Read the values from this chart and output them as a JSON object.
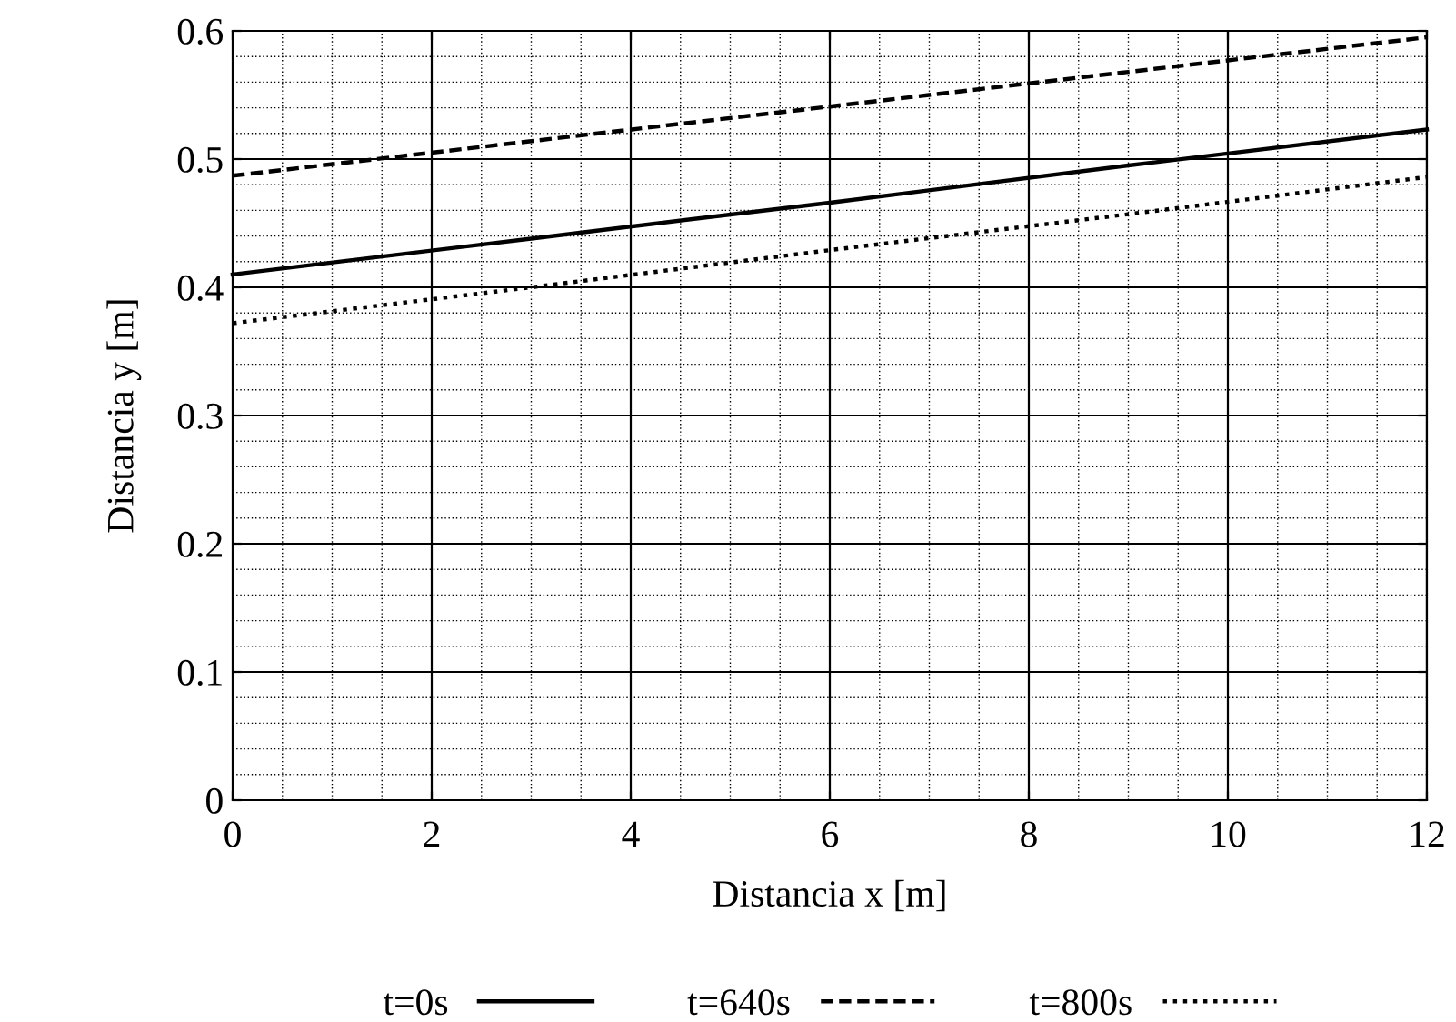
{
  "chart_data": {
    "type": "line",
    "xlabel": "Distancia x [m]",
    "ylabel": "Distancia y [m]",
    "xlim": [
      0,
      12
    ],
    "xticks": [
      0,
      2,
      4,
      6,
      8,
      10,
      12
    ],
    "ylim": [
      0,
      0.6
    ],
    "yticks": [
      0,
      0.1,
      0.2,
      0.3,
      0.4,
      0.5,
      0.6
    ],
    "grid": true,
    "legend": "bottom",
    "marker": "none",
    "x": [
      0,
      3,
      6,
      9,
      12
    ],
    "series": [
      {
        "name": "t=0s",
        "color": "#000000",
        "line_style": "solid",
        "values": [
          0.41,
          0.438,
          0.466,
          0.495,
          0.523
        ]
      },
      {
        "name": "t=640s",
        "color": "#000000",
        "line_style": "dashed",
        "values": [
          0.487,
          0.514,
          0.541,
          0.568,
          0.595
        ]
      },
      {
        "name": "t=800s",
        "color": "#000000",
        "line_style": "dotted",
        "values": [
          0.372,
          0.4,
          0.429,
          0.457,
          0.486
        ]
      }
    ]
  }
}
